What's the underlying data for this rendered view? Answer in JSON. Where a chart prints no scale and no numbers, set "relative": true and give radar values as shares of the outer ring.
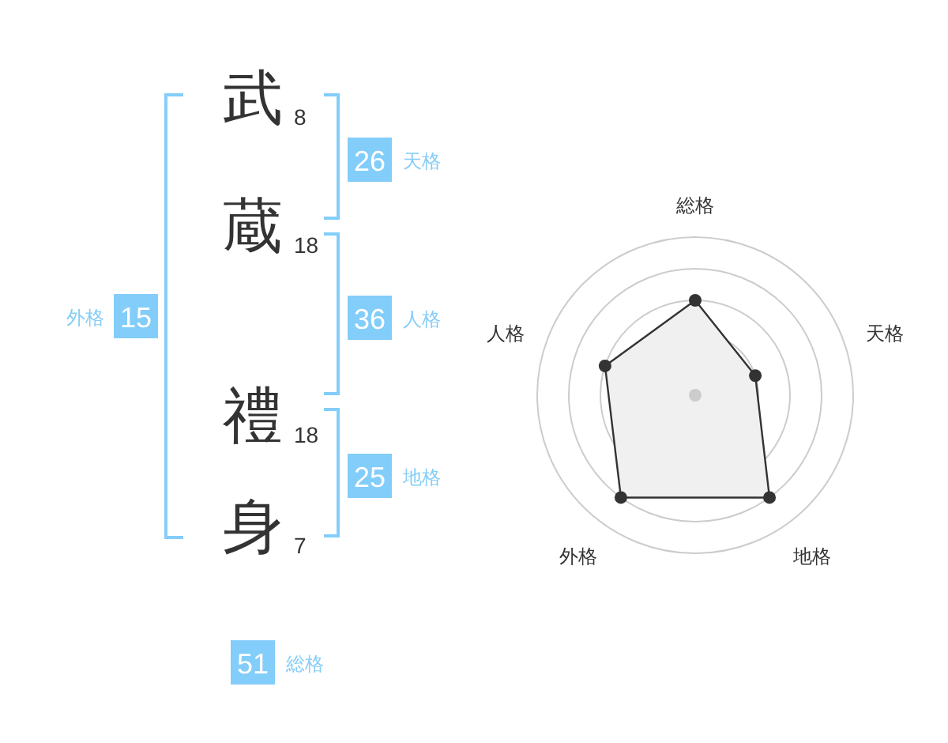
{
  "chart_data": [
    {
      "type": "other",
      "categories": [
        "武",
        "蔵",
        "禮",
        "身"
      ],
      "values": [
        8,
        18,
        18,
        7
      ],
      "data_labels": true,
      "annotations": [
        "26",
        "天格",
        "36",
        "人格",
        "25",
        "地格",
        "15",
        "外格",
        "51",
        "総格"
      ]
    },
    {
      "type": "radar",
      "categories": [
        "総格",
        "天格",
        "地格",
        "外格",
        "人格"
      ],
      "relative": true,
      "series": [
        {
          "color": "#333333",
          "values": [
            0.6,
            0.4,
            0.8,
            0.8,
            0.6
          ]
        }
      ],
      "grid": true,
      "marker": "circle"
    }
  ]
}
